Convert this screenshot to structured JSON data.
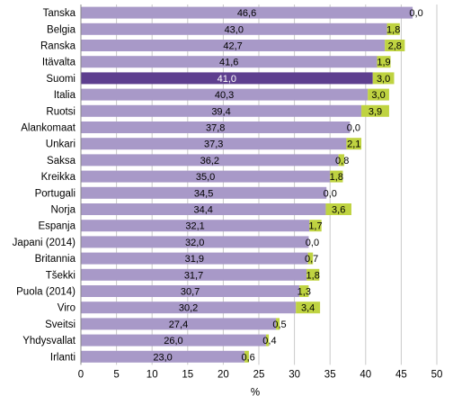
{
  "chart_data": {
    "type": "bar",
    "orientation": "horizontal",
    "stacked": true,
    "highlight_category": "Suomi",
    "categories": [
      "Tanska",
      "Belgia",
      "Ranska",
      "Itävalta",
      "Suomi",
      "Italia",
      "Ruotsi",
      "Alankomaat",
      "Unkari",
      "Saksa",
      "Kreikka",
      "Portugali",
      "Norja",
      "Espanja",
      "Japani (2014)",
      "Britannia",
      "Tšekki",
      "Puola (2014)",
      "Viro",
      "Sveitsi",
      "Yhdysvallat",
      "Irlanti"
    ],
    "series": [
      {
        "color": "#a899c8",
        "highlight_color": "#5e3f8f",
        "values": [
          46.6,
          43.0,
          42.7,
          41.6,
          41.0,
          40.3,
          39.4,
          37.8,
          37.3,
          36.2,
          35.0,
          34.5,
          34.4,
          32.1,
          32.0,
          31.9,
          31.7,
          30.7,
          30.2,
          27.4,
          26.0,
          23.0
        ],
        "labels": [
          "46,6",
          "43,0",
          "42,7",
          "41,6",
          "41,0",
          "40,3",
          "39,4",
          "37,8",
          "37,3",
          "36,2",
          "35,0",
          "34,5",
          "34,4",
          "32,1",
          "32,0",
          "31,9",
          "31,7",
          "30,7",
          "30,2",
          "27,4",
          "26,0",
          "23,0"
        ]
      },
      {
        "color": "#bfd341",
        "values": [
          0.0,
          1.8,
          2.8,
          1.9,
          3.0,
          3.0,
          3.9,
          0.0,
          2.1,
          0.8,
          1.8,
          0.0,
          3.6,
          1.7,
          0.0,
          0.7,
          1.8,
          1.3,
          3.4,
          0.5,
          0.4,
          0.6
        ],
        "labels": [
          "0,0",
          "1,8",
          "2,8",
          "1,9",
          "3,0",
          "3,0",
          "3,9",
          "0,0",
          "2,1",
          "0,8",
          "1,8",
          "0,0",
          "3,6",
          "1,7",
          "0,0",
          "0,7",
          "1,8",
          "1,3",
          "3,4",
          "0,5",
          "0,4",
          "0,6"
        ]
      }
    ],
    "xlim": [
      0,
      50
    ],
    "xticks": [
      "0",
      "5",
      "10",
      "15",
      "20",
      "25",
      "30",
      "35",
      "40",
      "45",
      "50"
    ],
    "xlabel": "%",
    "grid": "vertical"
  }
}
